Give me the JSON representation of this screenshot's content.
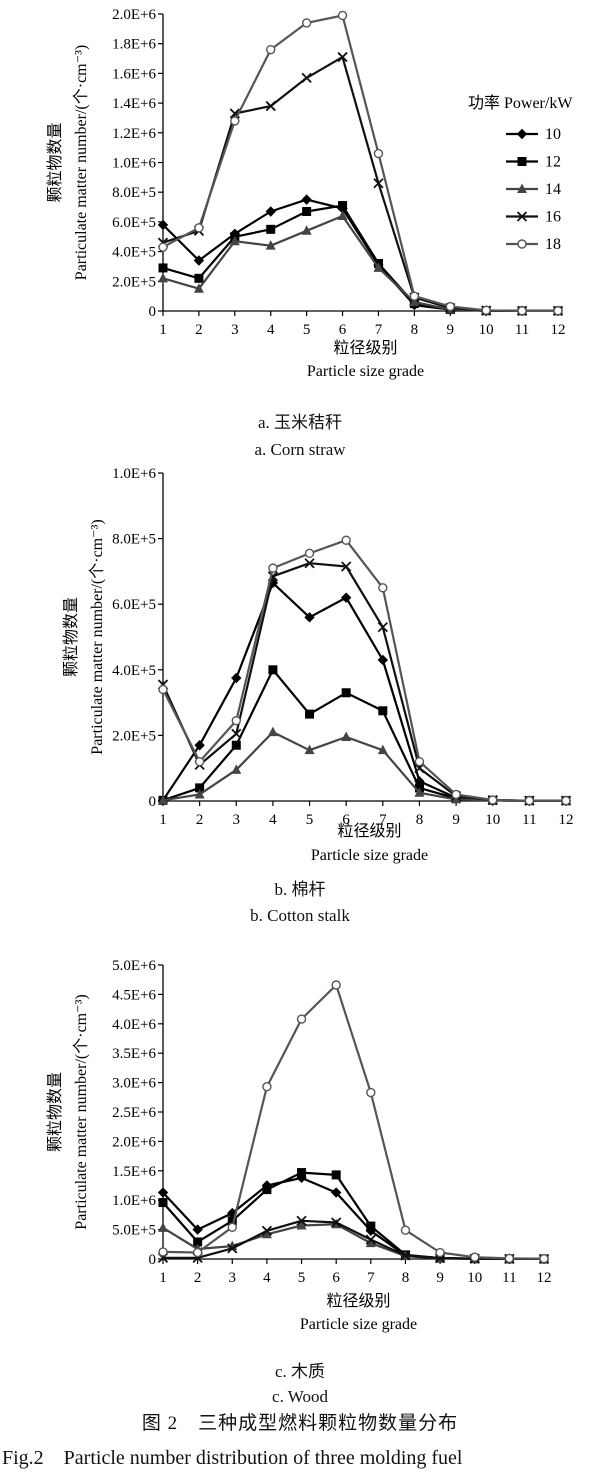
{
  "legend": {
    "title": "功率 Power/kW",
    "items": [
      "10",
      "12",
      "14",
      "16",
      "18"
    ]
  },
  "series_styles": [
    {
      "marker": "diamond",
      "color": "#000000",
      "width": 2.2
    },
    {
      "marker": "square",
      "color": "#000000",
      "width": 2.2
    },
    {
      "marker": "triangle",
      "color": "#444444",
      "width": 2.2
    },
    {
      "marker": "cross",
      "color": "#111111",
      "width": 2.2
    },
    {
      "marker": "circle",
      "color": "#555555",
      "width": 2.2
    }
  ],
  "chart_data": [
    {
      "type": "line",
      "x": [
        1,
        2,
        3,
        4,
        5,
        6,
        7,
        8,
        9,
        10,
        11,
        12
      ],
      "xticks": [
        "1",
        "2",
        "3",
        "4",
        "5",
        "6",
        "7",
        "8",
        "9",
        "10",
        "11",
        "12"
      ],
      "ylim": [
        0,
        2000000
      ],
      "yticks": [
        0,
        200000,
        400000,
        600000,
        800000,
        1000000,
        1200000,
        1400000,
        1600000,
        1800000,
        2000000
      ],
      "ytick_labels": [
        "0",
        "2.0E+5",
        "4.0E+5",
        "6.0E+5",
        "8.0E+5",
        "1.0E+6",
        "1.2E+6",
        "1.4E+6",
        "1.6E+6",
        "1.8E+6",
        "2.0E+6"
      ],
      "ylabel_zh": "颗粒物数量",
      "ylabel_en": "Particulate matter number/(个·cm⁻³)",
      "xlabel_zh": "粒径级别",
      "xlabel_en": "Particle size grade",
      "caption_zh": "a. 玉米秸秆",
      "caption_en": "a. Corn straw",
      "series": [
        {
          "name": "10",
          "values": [
            580000,
            340000,
            520000,
            670000,
            750000,
            690000,
            310000,
            40000,
            10000,
            2000,
            1000,
            1000
          ]
        },
        {
          "name": "12",
          "values": [
            290000,
            220000,
            500000,
            550000,
            670000,
            710000,
            320000,
            50000,
            10000,
            2000,
            1000,
            1000
          ]
        },
        {
          "name": "14",
          "values": [
            220000,
            150000,
            470000,
            440000,
            540000,
            640000,
            290000,
            60000,
            10000,
            2000,
            1000,
            1000
          ]
        },
        {
          "name": "16",
          "values": [
            460000,
            540000,
            1330000,
            1380000,
            1570000,
            1710000,
            860000,
            90000,
            20000,
            3000,
            1000,
            1000
          ]
        },
        {
          "name": "18",
          "values": [
            430000,
            560000,
            1280000,
            1760000,
            1940000,
            1990000,
            1060000,
            100000,
            30000,
            5000,
            1000,
            1000
          ]
        }
      ]
    },
    {
      "type": "line",
      "x": [
        1,
        2,
        3,
        4,
        5,
        6,
        7,
        8,
        9,
        10,
        11,
        12
      ],
      "xticks": [
        "1",
        "2",
        "3",
        "4",
        "5",
        "6",
        "7",
        "8",
        "9",
        "10",
        "11",
        "12"
      ],
      "ylim": [
        0,
        1000000
      ],
      "yticks": [
        0,
        200000,
        400000,
        600000,
        800000,
        1000000
      ],
      "ytick_labels": [
        "0",
        "2.0E+5",
        "4.0E+5",
        "6.0E+5",
        "8.0E+5",
        "1.0E+6"
      ],
      "ylabel_zh": "颗粒物数量",
      "ylabel_en": "Particulate matter number/(个·cm⁻³)",
      "xlabel_zh": "粒径级别",
      "xlabel_en": "Particle size grade",
      "caption_zh": "b. 棉杆",
      "caption_en": "b. Cotton stalk",
      "series": [
        {
          "name": "10",
          "values": [
            2000,
            170000,
            375000,
            665000,
            560000,
            620000,
            430000,
            60000,
            10000,
            2000,
            1000,
            1000
          ]
        },
        {
          "name": "12",
          "values": [
            2000,
            40000,
            170000,
            400000,
            265000,
            330000,
            275000,
            40000,
            8000,
            2000,
            1000,
            1000
          ]
        },
        {
          "name": "14",
          "values": [
            2000,
            20000,
            95000,
            210000,
            155000,
            195000,
            155000,
            25000,
            5000,
            2000,
            1000,
            1000
          ]
        },
        {
          "name": "16",
          "values": [
            355000,
            110000,
            205000,
            685000,
            725000,
            715000,
            530000,
            100000,
            15000,
            3000,
            1000,
            1000
          ]
        },
        {
          "name": "18",
          "values": [
            340000,
            120000,
            245000,
            710000,
            755000,
            795000,
            650000,
            120000,
            20000,
            3000,
            1000,
            1000
          ]
        }
      ]
    },
    {
      "type": "line",
      "x": [
        1,
        2,
        3,
        4,
        5,
        6,
        7,
        8,
        9,
        10,
        11,
        12
      ],
      "xticks": [
        "1",
        "2",
        "3",
        "4",
        "5",
        "6",
        "7",
        "8",
        "9",
        "10",
        "11",
        "12"
      ],
      "ylim": [
        0,
        5000000
      ],
      "yticks": [
        0,
        500000,
        1000000,
        1500000,
        2000000,
        2500000,
        3000000,
        3500000,
        4000000,
        4500000,
        5000000
      ],
      "ytick_labels": [
        "0",
        "5.0E+5",
        "1.0E+6",
        "1.5E+6",
        "2.0E+6",
        "2.5E+6",
        "3.0E+6",
        "3.5E+6",
        "4.0E+6",
        "4.5E+6",
        "5.0E+6"
      ],
      "ylabel_zh": "颗粒物数量",
      "ylabel_en": "Particulate matter number/(个·cm⁻³)",
      "xlabel_zh": "粒径级别",
      "xlabel_en": "Particle size grade",
      "caption_zh": "c. 木质",
      "caption_en": "c. Wood",
      "series": [
        {
          "name": "10",
          "values": [
            1130000,
            500000,
            780000,
            1250000,
            1380000,
            1130000,
            480000,
            60000,
            15000,
            5000,
            2000,
            1000
          ]
        },
        {
          "name": "12",
          "values": [
            960000,
            290000,
            650000,
            1180000,
            1470000,
            1430000,
            560000,
            70000,
            15000,
            5000,
            2000,
            1000
          ]
        },
        {
          "name": "14",
          "values": [
            530000,
            170000,
            220000,
            420000,
            570000,
            590000,
            270000,
            50000,
            10000,
            4000,
            2000,
            1000
          ]
        },
        {
          "name": "16",
          "values": [
            20000,
            20000,
            180000,
            480000,
            650000,
            620000,
            330000,
            60000,
            15000,
            5000,
            2000,
            1000
          ]
        },
        {
          "name": "18",
          "values": [
            120000,
            110000,
            540000,
            2930000,
            4080000,
            4660000,
            2830000,
            490000,
            110000,
            30000,
            10000,
            5000
          ]
        }
      ]
    }
  ],
  "figure": {
    "caption_zh": "图 2　三种成型燃料颗粒物数量分布",
    "caption_en": "Fig.2　Particle number distribution of three molding fuel"
  }
}
